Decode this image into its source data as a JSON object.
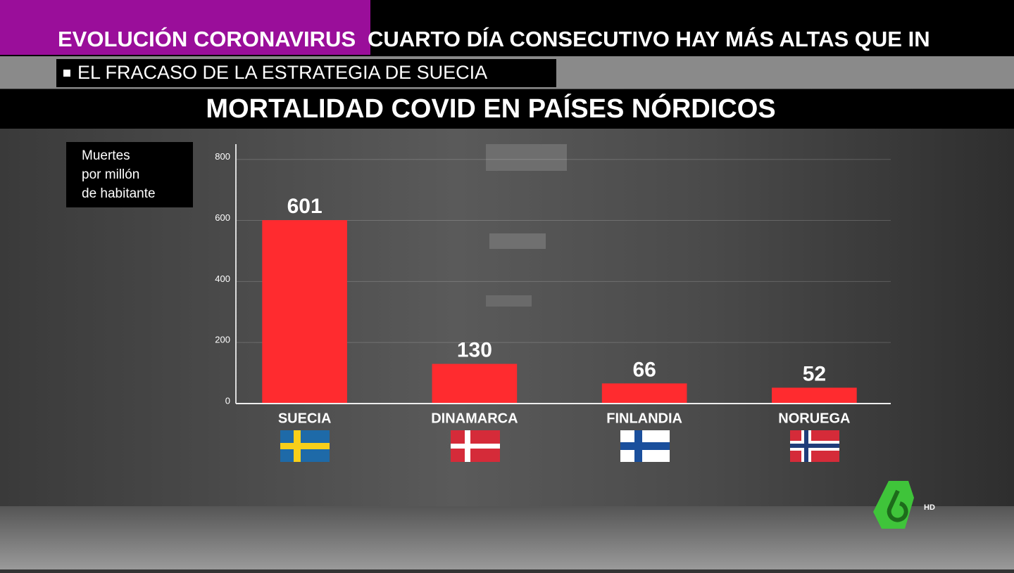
{
  "ticker": {
    "section": "EVOLUCIÓN CORONAVIRUS",
    "headline": "CUARTO DÍA CONSECUTIVO HAY MÁS ALTAS QUE IN",
    "subheadline": "EL FRACASO DE LA ESTRATEGIA DE SUECIA"
  },
  "channel": {
    "badge": "HD"
  },
  "chart_data": {
    "type": "bar",
    "title": "MORTALIDAD COVID EN PAÍSES NÓRDICOS",
    "y_label": [
      "Muertes",
      "por millón",
      "de habitante"
    ],
    "categories": [
      "SUECIA",
      "DINAMARCA",
      "FINLANDIA",
      "NORUEGA"
    ],
    "values": [
      601,
      130,
      66,
      52
    ],
    "color": "#ff2b2f",
    "ylim": [
      0,
      850
    ],
    "yticks": [
      0,
      200,
      400,
      600,
      800
    ],
    "grid": true
  }
}
